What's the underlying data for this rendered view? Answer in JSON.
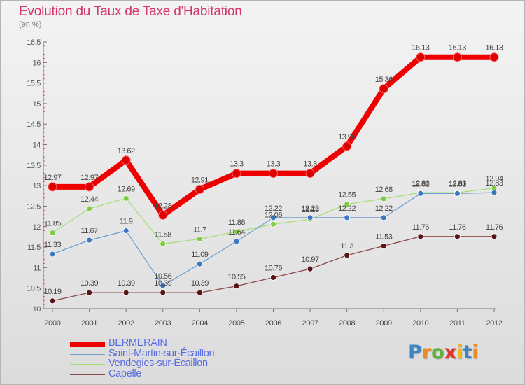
{
  "header": {
    "title": "Evolution du Taux de Taxe d'Habitation",
    "unit_note": "(en %)"
  },
  "chart_data": {
    "type": "line",
    "x": [
      "2000",
      "2001",
      "2002",
      "2003",
      "2004",
      "2005",
      "2006",
      "2007",
      "2008",
      "2009",
      "2010",
      "2011",
      "2012"
    ],
    "ylim": [
      10,
      16.5
    ],
    "yticks": [
      "10",
      "10.5",
      "11",
      "11.5",
      "12",
      "12.5",
      "13",
      "13.5",
      "14",
      "14.5",
      "15",
      "15.5",
      "16",
      "16.5"
    ],
    "grid": false,
    "legend_placement": "bottom-left",
    "series": [
      {
        "name": "BERMERAIN",
        "color": "#ee0000",
        "marker_color": "#dd0000",
        "values": [
          12.97,
          12.97,
          13.62,
          12.28,
          12.91,
          13.3,
          13.3,
          13.3,
          13.96,
          15.36,
          16.13,
          16.13,
          16.13
        ],
        "labels": [
          "12.97",
          "12.97",
          "13.62",
          "12.28",
          "12.91",
          "13.3",
          "13.3",
          "13.3",
          "13.96",
          "15.36",
          "16.13",
          "16.13",
          "16.13"
        ]
      },
      {
        "name": "Saint-Martin-sur-Écaillon",
        "color": "#6f9fcf",
        "marker_color": "#3a78c0",
        "values": [
          11.33,
          11.67,
          11.9,
          10.56,
          11.09,
          11.64,
          12.22,
          12.22,
          12.22,
          12.22,
          12.81,
          12.81,
          12.83
        ],
        "labels": [
          "11.33",
          "11.67",
          "11.9",
          "10.56",
          "11.09",
          "11.64",
          "12.22",
          "12.22",
          "12.22",
          "12.22",
          "12.81",
          "12.81",
          "12.83"
        ]
      },
      {
        "name": "Vendegies-sur-Écaillon",
        "color": "#a6e07a",
        "marker_color": "#7ccd3f",
        "values": [
          11.85,
          12.44,
          12.69,
          11.58,
          11.7,
          11.88,
          12.06,
          12.18,
          12.55,
          12.68,
          12.83,
          12.83,
          12.94
        ],
        "labels": [
          "11.85",
          "12.44",
          "12.69",
          "11.58",
          "11.7",
          "11.88",
          "12.06",
          "12.18",
          "12.55",
          "12.68",
          "12.83",
          "12.83",
          "12.94"
        ]
      },
      {
        "name": "Capelle",
        "color": "#8a4a4a",
        "marker_color": "#5a1414",
        "values": [
          10.19,
          10.39,
          10.39,
          10.39,
          10.39,
          10.55,
          10.76,
          10.97,
          11.3,
          11.53,
          11.76,
          11.76,
          11.76
        ],
        "labels": [
          "10.19",
          "10.39",
          "10.39",
          "10.39",
          "10.39",
          "10.55",
          "10.76",
          "10.97",
          "11.3",
          "11.53",
          "11.76",
          "11.76",
          "11.76"
        ]
      }
    ]
  },
  "logo": {
    "letters": [
      "P",
      "r",
      "o",
      "x",
      "i",
      "t",
      "i"
    ],
    "colors": [
      "#3d86c6",
      "#f08a1e",
      "#5fb33a",
      "#e0352b",
      "#f0b81e",
      "#3d86c6",
      "#f08a1e"
    ]
  }
}
